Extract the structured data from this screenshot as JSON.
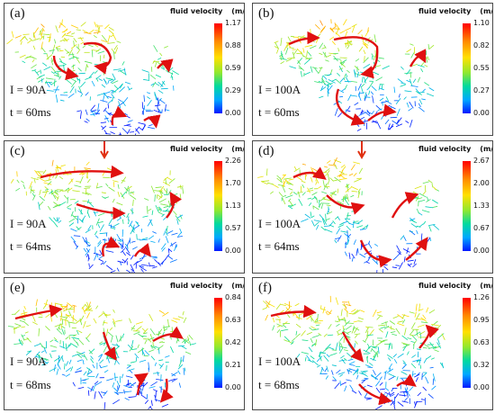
{
  "colorbar_title": "fluid velocity",
  "colorbar_unit": "(m/s)",
  "colors": {
    "colormap": [
      "#0018ff",
      "#00a8ff",
      "#00d9a0",
      "#8fe830",
      "#ffe000",
      "#ff8a00",
      "#ff0000"
    ],
    "vortex_arrow": "#e01010",
    "frame": "#4a4a4a"
  },
  "panels": [
    {
      "label": "(a)",
      "current": "I = 90A",
      "time": "t = 60ms",
      "ticks": [
        "1.17",
        "0.88",
        "0.59",
        "0.29",
        "0.00"
      ],
      "laser_arrow": false
    },
    {
      "label": "(b)",
      "current": "I = 100A",
      "time": "t = 60ms",
      "ticks": [
        "1.10",
        "0.82",
        "0.55",
        "0.27",
        "0.00"
      ],
      "laser_arrow": false
    },
    {
      "label": "(c)",
      "current": "I = 90A",
      "time": "t = 64ms",
      "ticks": [
        "2.26",
        "1.70",
        "1.13",
        "0.57",
        "0.00"
      ],
      "laser_arrow": true
    },
    {
      "label": "(d)",
      "current": "I = 100A",
      "time": "t = 64ms",
      "ticks": [
        "2.67",
        "2.00",
        "1.33",
        "0.67",
        "0.00"
      ],
      "laser_arrow": true
    },
    {
      "label": "(e)",
      "current": "I = 90A",
      "time": "t = 68ms",
      "ticks": [
        "0.84",
        "0.63",
        "0.42",
        "0.21",
        "0.00"
      ],
      "laser_arrow": false
    },
    {
      "label": "(f)",
      "current": "I = 100A",
      "time": "t = 68ms",
      "ticks": [
        "1.26",
        "0.95",
        "0.63",
        "0.32",
        "0.00"
      ],
      "laser_arrow": false
    }
  ]
}
